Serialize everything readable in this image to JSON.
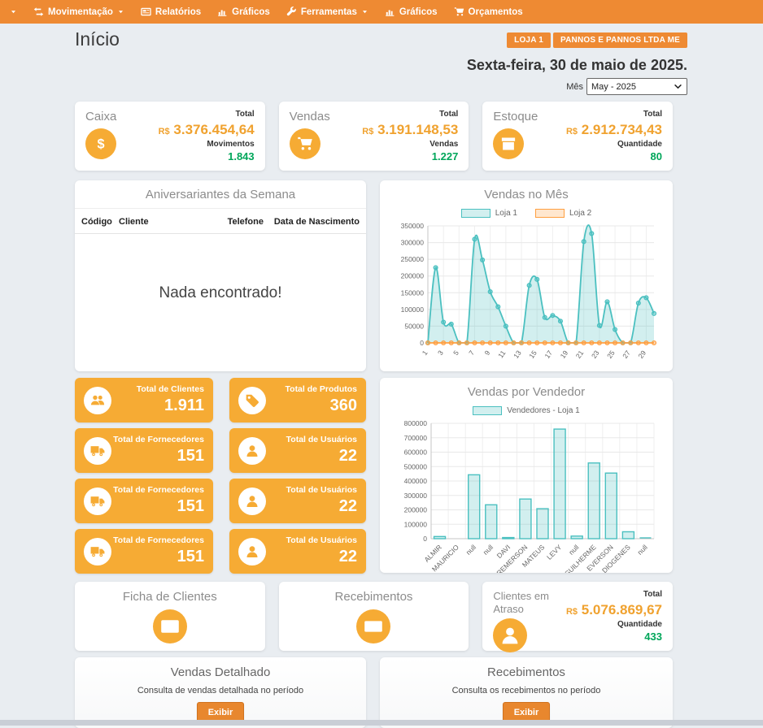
{
  "colors": {
    "navbar_orange": "#ee8a33",
    "tile_orange": "#f6ab34",
    "accent_orange": "#f0a22f",
    "green": "#00a65a",
    "teal": "#4bc0c0",
    "chart_orange": "#ff9f40",
    "button_orange": "#e8872e",
    "page_bg": "#e9edf1"
  },
  "navbar": {
    "items": [
      {
        "label": "",
        "icon": "caret-down-icon",
        "dropdown": false
      },
      {
        "label": "Movimentação",
        "icon": "exchange-icon",
        "dropdown": true
      },
      {
        "label": "Relatórios",
        "icon": "report-icon",
        "dropdown": false
      },
      {
        "label": "Gráficos",
        "icon": "bar-chart-icon",
        "dropdown": false
      },
      {
        "label": "Ferramentas",
        "icon": "wrench-icon",
        "dropdown": true
      },
      {
        "label": "Gráficos",
        "icon": "bar-chart-icon",
        "dropdown": false
      },
      {
        "label": "Orçamentos",
        "icon": "cart-icon",
        "dropdown": false
      }
    ]
  },
  "header": {
    "title": "Início",
    "badges": [
      "LOJA 1",
      "PANNOS E PANNOS LTDA ME"
    ],
    "date": "Sexta-feira, 30 de maio de 2025.",
    "month_label": "Mês",
    "month_value": "May - 2025"
  },
  "summary_cards": [
    {
      "title": "Caixa",
      "icon": "dollar-icon",
      "total_label": "Total",
      "currency": "R$",
      "total": "3.376.454,64",
      "count_label": "Movimentos",
      "count": "1.843"
    },
    {
      "title": "Vendas",
      "icon": "cart-icon",
      "total_label": "Total",
      "currency": "R$",
      "total": "3.191.148,53",
      "count_label": "Vendas",
      "count": "1.227"
    },
    {
      "title": "Estoque",
      "icon": "box-icon",
      "total_label": "Total",
      "currency": "R$",
      "total": "2.912.734,43",
      "count_label": "Quantidade",
      "count": "80"
    }
  ],
  "birthdays": {
    "title": "Aniversariantes da Semana",
    "columns": [
      "Código",
      "Cliente",
      "Telefone",
      "Data de Nascimento"
    ],
    "empty_message": "Nada encontrado!"
  },
  "chart_data": [
    {
      "type": "area",
      "title": "Vendas no Mês",
      "x": [
        1,
        2,
        3,
        4,
        5,
        6,
        7,
        8,
        9,
        10,
        11,
        12,
        13,
        14,
        15,
        16,
        17,
        18,
        19,
        20,
        21,
        22,
        23,
        24,
        25,
        26,
        27,
        28,
        29,
        30
      ],
      "series": [
        {
          "name": "Loja 1",
          "color": "#4bc0c0",
          "fill": "rgba(75,192,192,0.25)",
          "marker_fill": "rgba(75,192,192,0.45)",
          "values": [
            0,
            225000,
            62000,
            56000,
            0,
            0,
            310000,
            248000,
            153000,
            108000,
            50000,
            0,
            0,
            172000,
            190000,
            76000,
            82000,
            65000,
            0,
            0,
            303000,
            327000,
            52000,
            123000,
            40000,
            0,
            0,
            119000,
            135000,
            88000
          ]
        },
        {
          "name": "Loja 2",
          "color": "#ff9f40",
          "fill": "rgba(255,159,64,0.25)",
          "marker_fill": "rgba(255,159,64,0.35)",
          "values": [
            0,
            0,
            0,
            0,
            0,
            0,
            0,
            0,
            0,
            0,
            0,
            0,
            0,
            0,
            0,
            0,
            0,
            0,
            0,
            0,
            0,
            0,
            0,
            0,
            0,
            0,
            0,
            0,
            0,
            0
          ]
        }
      ],
      "ylim": [
        0,
        350000
      ],
      "ytick": 50000,
      "xticks_shown": "odd-days",
      "grid": true,
      "legend_position": "top"
    },
    {
      "type": "bar",
      "title": "Vendas por Vendedor",
      "categories": [
        "ALMIR",
        "MAURICIO",
        "null",
        "null",
        "DAVI",
        "REMERSON",
        "MATEUS",
        "LEVY",
        "null",
        "GUILHERME",
        "EVERSON",
        "DIOGENES",
        "null"
      ],
      "series": [
        {
          "name": "Vendedores - Loja 1",
          "color": "#4bc0c0",
          "fill": "rgba(75,192,192,0.25)",
          "values": [
            15000,
            0,
            443000,
            235000,
            8000,
            275000,
            208000,
            760000,
            18000,
            525000,
            455000,
            48000,
            3000
          ]
        }
      ],
      "ylim": [
        0,
        800000
      ],
      "ytick": 100000,
      "grid": true,
      "legend_position": "top"
    }
  ],
  "tiles": [
    {
      "icon": "users-icon",
      "label": "Total de Clientes",
      "value": "1.911"
    },
    {
      "icon": "tag-icon",
      "label": "Total de Produtos",
      "value": "360"
    },
    {
      "icon": "truck-icon",
      "label": "Total de Fornecedores",
      "value": "151"
    },
    {
      "icon": "user-icon",
      "label": "Total de Usuários",
      "value": "22"
    },
    {
      "icon": "truck-icon",
      "label": "Total de Fornecedores",
      "value": "151"
    },
    {
      "icon": "user-icon",
      "label": "Total de Usuários",
      "value": "22"
    },
    {
      "icon": "truck-icon",
      "label": "Total de Fornecedores",
      "value": "151"
    },
    {
      "icon": "user-icon",
      "label": "Total de Usuários",
      "value": "22"
    }
  ],
  "shortcuts": [
    {
      "title": "Ficha de Clientes",
      "icon": "id-card-icon"
    },
    {
      "title": "Recebimentos",
      "icon": "money-icon"
    }
  ],
  "overdue": {
    "title": "Clientes em Atraso",
    "icon": "person-icon",
    "total_label": "Total",
    "currency": "R$",
    "total": "5.076.869,67",
    "count_label": "Quantidade",
    "count": "433"
  },
  "actions": [
    {
      "title": "Vendas Detalhado",
      "description": "Consulta de vendas detalhada no período",
      "button": "Exibir"
    },
    {
      "title": "Recebimentos",
      "description": "Consulta os recebimentos no período",
      "button": "Exibir"
    }
  ]
}
